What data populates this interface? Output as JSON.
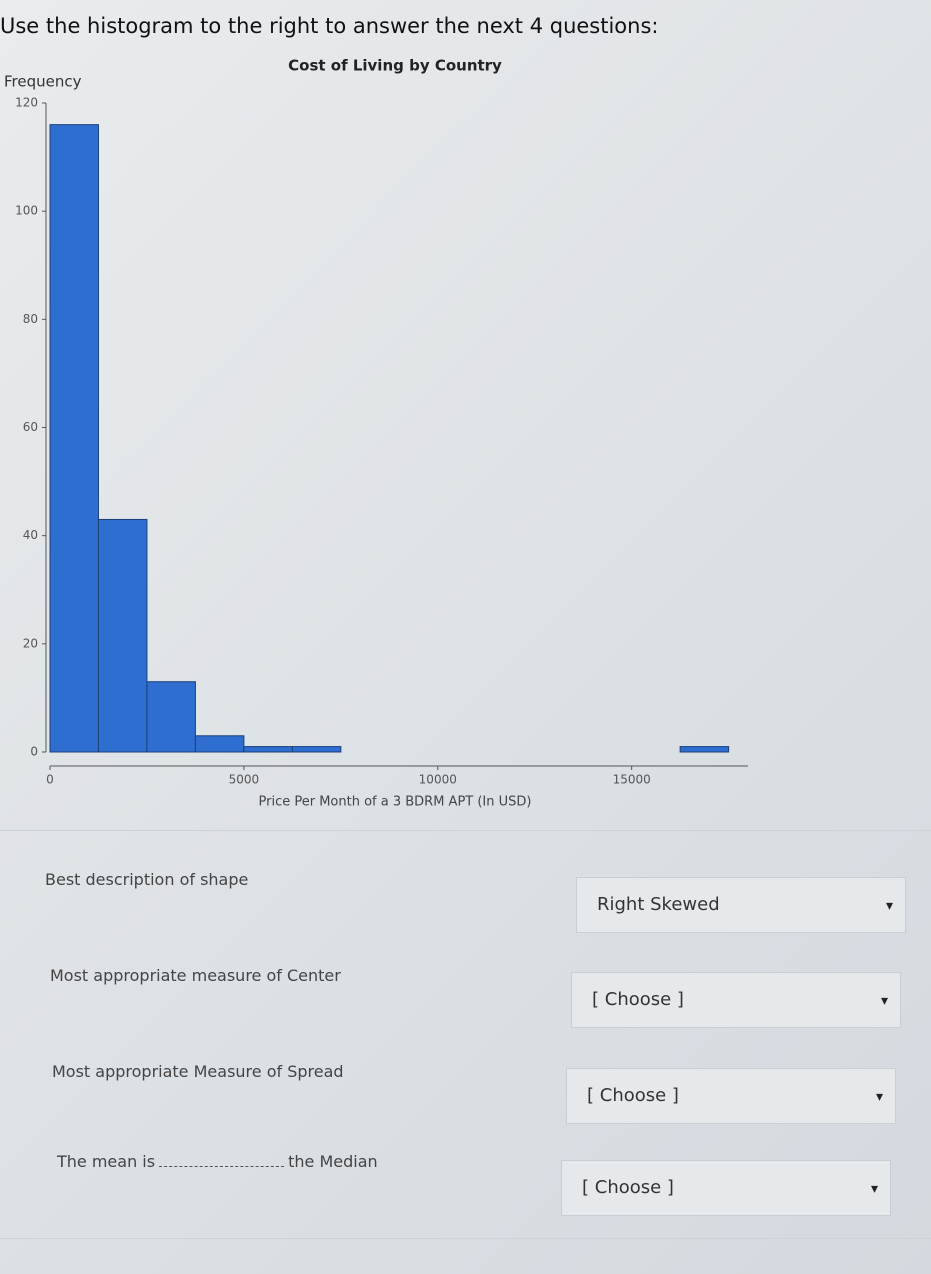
{
  "instruction": "Use the histogram to the right to answer the next 4 questions:",
  "chart_data": {
    "type": "histogram",
    "title": "Cost of Living by Country",
    "x_label": "Price Per Month of a 3 BDRM APT (In USD)",
    "y_label": "Frequency",
    "bins": [
      0,
      1250,
      2500,
      3750,
      5000,
      6250,
      7500,
      8750,
      10000,
      11250,
      12500,
      13750,
      15000,
      16250,
      17500
    ],
    "values": [
      116,
      43,
      13,
      3,
      1,
      1,
      0,
      0,
      0,
      0,
      0,
      0,
      0,
      1
    ],
    "color": "#2d6ed0",
    "xlim": [
      0,
      18000
    ],
    "xticks": [
      0,
      5000,
      10000,
      15000
    ],
    "ylim": [
      0,
      120
    ],
    "yticks": [
      0,
      20,
      40,
      60,
      80,
      100,
      120
    ],
    "grid": false
  },
  "questions": [
    {
      "label": "Best description of shape",
      "answer": "Right Skewed"
    },
    {
      "label": "Most appropriate measure of Center",
      "answer": "[ Choose ]"
    },
    {
      "label": "Most appropriate Measure of Spread",
      "answer": "[ Choose ]"
    },
    {
      "label_before": "The mean is",
      "label_after": "the Median",
      "answer": "[ Choose ]"
    }
  ]
}
